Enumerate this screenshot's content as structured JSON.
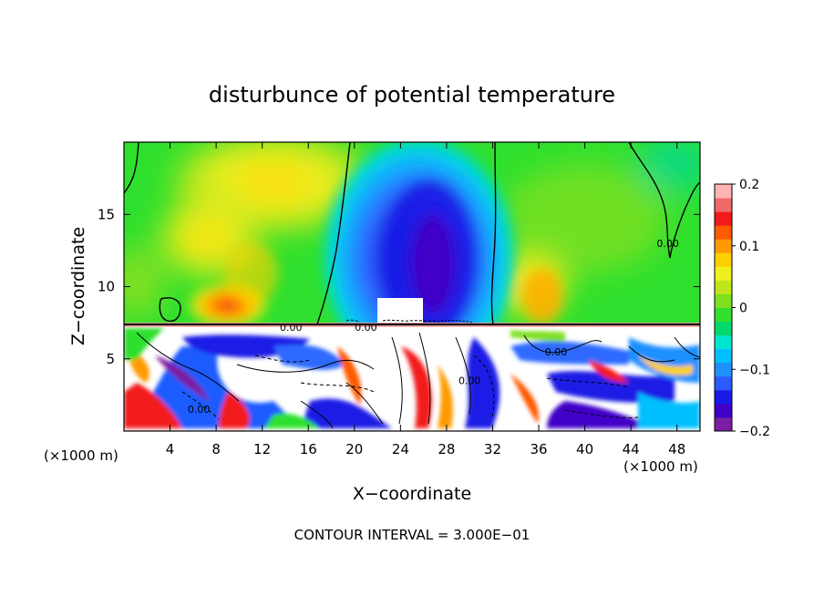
{
  "chart_data": {
    "type": "heatmap",
    "title": "disturbunce of potential temperature",
    "xlabel": "X−coordinate",
    "ylabel": "Z−coordinate",
    "x_unit_label": "(×1000 m)",
    "z_unit_label": "(×1000 m)",
    "footer": "CONTOUR INTERVAL = 3.000E−01",
    "xlim": [
      0,
      50
    ],
    "ylim": [
      0,
      20
    ],
    "x_ticks": [
      4,
      8,
      12,
      16,
      20,
      24,
      28,
      32,
      36,
      40,
      44,
      48
    ],
    "x_tick_labels": [
      "4",
      "8",
      "12",
      "16",
      "20",
      "24",
      "28",
      "32",
      "36",
      "40",
      "44",
      "48"
    ],
    "y_ticks": [
      5,
      10,
      15
    ],
    "y_tick_labels": [
      "5",
      "10",
      "15"
    ],
    "colorbar": {
      "range": [
        -0.2,
        0.2
      ],
      "tick_values": [
        0.2,
        0.1,
        0,
        -0.1,
        -0.2
      ],
      "tick_labels": [
        "0.2",
        "0.1",
        "0",
        "−0.1",
        "−0.2"
      ],
      "colors": [
        "#7B1FA2",
        "#3F00C8",
        "#1A1AE6",
        "#2E5BFF",
        "#1E90FF",
        "#00BFFF",
        "#00E5D0",
        "#00D96A",
        "#33E02E",
        "#7FE020",
        "#BFE61A",
        "#F0F020",
        "#FFD000",
        "#FF9A00",
        "#FF5A00",
        "#F21B1B",
        "#F06A6A",
        "#FFB3B3"
      ]
    },
    "contour_labels": [
      {
        "text": "0.00",
        "x": 14.5,
        "z": 7.2
      },
      {
        "text": "0.00",
        "x": 21.0,
        "z": 7.2
      },
      {
        "text": "0.00",
        "x": 37.5,
        "z": 5.5
      },
      {
        "text": "0.00",
        "x": 47.2,
        "z": 13.0
      },
      {
        "text": "0.00",
        "x": 30.0,
        "z": 3.5
      },
      {
        "text": "0.00",
        "x": 6.5,
        "z": 1.5
      }
    ],
    "features": [
      {
        "kind": "cold_core",
        "x": 26.0,
        "z": 13.5,
        "value": -0.2
      },
      {
        "kind": "warm_patch",
        "x": 9.0,
        "z": 9.0,
        "value": 0.12
      },
      {
        "kind": "warm_patch",
        "x": 36.0,
        "z": 9.5,
        "value": 0.08
      },
      {
        "kind": "warm_patch",
        "x": 13.0,
        "z": 18.0,
        "value": 0.06
      },
      {
        "kind": "warm_patch",
        "x": 7.0,
        "z": 14.0,
        "value": 0.05
      },
      {
        "kind": "turbulent_layer",
        "z_top": 7.3,
        "description_range": [
          -0.2,
          0.2
        ]
      }
    ]
  }
}
